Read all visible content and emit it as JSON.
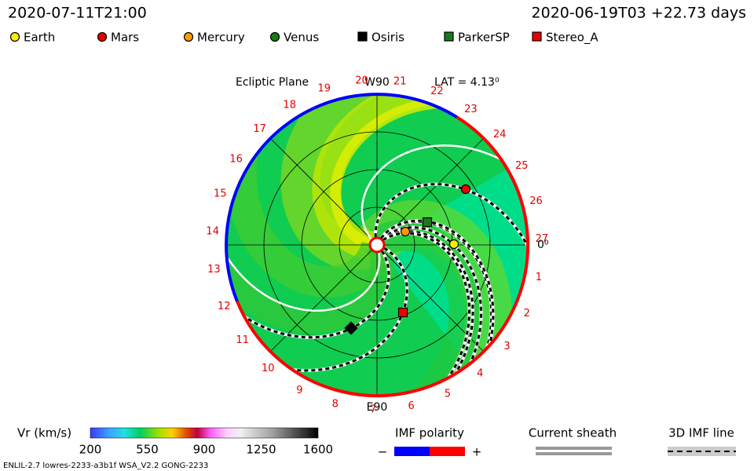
{
  "header": {
    "left": "2020-07-11T21:00",
    "right": "2020-06-19T03 +22.73 days"
  },
  "legend": [
    {
      "name": "Earth",
      "color": "#ffee00",
      "shape": "circle"
    },
    {
      "name": "Mars",
      "color": "#ee0000",
      "shape": "circle"
    },
    {
      "name": "Mercury",
      "color": "#ff9900",
      "shape": "circle"
    },
    {
      "name": "Venus",
      "color": "#1a7a1a",
      "shape": "circle"
    },
    {
      "name": "Osiris",
      "color": "#000000",
      "shape": "square"
    },
    {
      "name": "ParkerSP",
      "color": "#1a7a1a",
      "shape": "square"
    },
    {
      "name": "Stereo_A",
      "color": "#ee0000",
      "shape": "square"
    }
  ],
  "plot": {
    "title": "Ecliptic Plane",
    "top_label": "W90",
    "lat_label": "LAT = 4.13⁰",
    "bottom_label": "E90",
    "right_label": "0⁰",
    "rim_labels": [
      "1",
      "2",
      "3",
      "4",
      "5",
      "6",
      "7",
      "8",
      "9",
      "10",
      "11",
      "12",
      "13",
      "14",
      "15",
      "16",
      "17",
      "18",
      "19",
      "20",
      "21",
      "22",
      "23",
      "24",
      "25",
      "26",
      "27"
    ]
  },
  "colorbar": {
    "title": "Vr (km/s)",
    "ticks": [
      "200",
      "550",
      "900",
      "1250",
      "1600"
    ]
  },
  "imf_polarity": {
    "title": "IMF polarity",
    "minus": "−",
    "plus": "+"
  },
  "current_sheath": {
    "title": "Current sheath"
  },
  "imf_line": {
    "title": "3D IMF line"
  },
  "footer": "ENLIL-2.7 lowres-2233-a3b1f WSA_V2.2 GONG-2233"
}
